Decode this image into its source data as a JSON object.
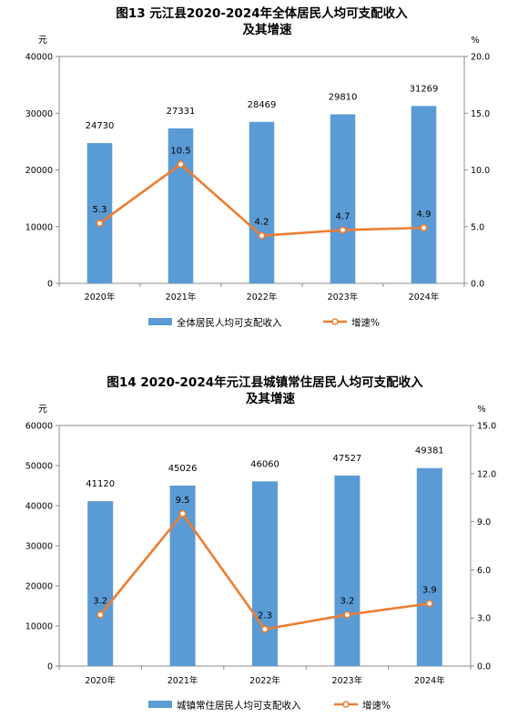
{
  "chart_data": [
    {
      "type": "bar",
      "title": "图13    元江县2020-2024年全体居民人均可支配收入",
      "subtitle": "及其增速",
      "categories": [
        "2020年",
        "2021年",
        "2022年",
        "2023年",
        "2024年"
      ],
      "series": [
        {
          "name": "全体居民人均可支配收入",
          "type": "bar",
          "axis": "left",
          "values": [
            24730,
            27331,
            28469,
            29810,
            31269
          ]
        },
        {
          "name": "增速%",
          "type": "line",
          "axis": "right",
          "values": [
            5.3,
            10.5,
            4.2,
            4.7,
            4.9
          ]
        }
      ],
      "left_axis": {
        "unit": "元",
        "min": 0,
        "max": 40000,
        "ticks": [
          "0",
          "10000",
          "20000",
          "30000",
          "40000"
        ]
      },
      "right_axis": {
        "unit": "%",
        "min": 0,
        "max": 20,
        "ticks": [
          "0.0",
          "5.0",
          "10.0",
          "15.0",
          "20.0"
        ]
      },
      "bar_labels": [
        "24730",
        "27331",
        "28469",
        "29810",
        "31269"
      ],
      "line_labels": [
        "5.3",
        "10.5",
        "4.2",
        "4.7",
        "4.9"
      ],
      "legend_position": "bottom",
      "grid": false,
      "colors": {
        "bar": "#5b9bd5",
        "line": "#ed7d31"
      }
    },
    {
      "type": "bar",
      "title": "图14    2020-2024年元江县城镇常住居民人均可支配收入",
      "subtitle": "及其增速",
      "categories": [
        "2020年",
        "2021年",
        "2022年",
        "2023年",
        "2024年"
      ],
      "series": [
        {
          "name": "城镇常住居民人均可支配收入",
          "type": "bar",
          "axis": "left",
          "values": [
            41120,
            45026,
            46060,
            47527,
            49381
          ]
        },
        {
          "name": "增速%",
          "type": "line",
          "axis": "right",
          "values": [
            3.2,
            9.5,
            2.3,
            3.2,
            3.9
          ]
        }
      ],
      "left_axis": {
        "unit": "元",
        "min": 0,
        "max": 60000,
        "ticks": [
          "0",
          "10000",
          "20000",
          "30000",
          "40000",
          "50000",
          "60000"
        ]
      },
      "right_axis": {
        "unit": "%",
        "min": 0,
        "max": 15,
        "ticks": [
          "0.0",
          "3.0",
          "6.0",
          "9.0",
          "12.0",
          "15.0"
        ]
      },
      "bar_labels": [
        "41120",
        "45026",
        "46060",
        "47527",
        "49381"
      ],
      "line_labels": [
        "3.2",
        "9.5",
        "2.3",
        "3.2",
        "3.9"
      ],
      "legend_position": "bottom",
      "grid": false,
      "colors": {
        "bar": "#5b9bd5",
        "line": "#ed7d31"
      }
    }
  ]
}
